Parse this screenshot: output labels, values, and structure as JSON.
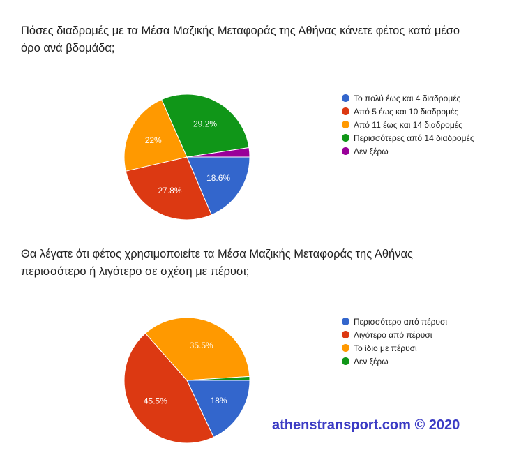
{
  "chart_data": [
    {
      "type": "pie",
      "title": "Πόσες διαδρομές με τα Μέσα Μαζικής Μεταφοράς της Αθήνας κάνετε φέτος κατά μέσο όρο ανά βδομάδα;",
      "legend_position": "right",
      "slices": [
        {
          "label": "Το πολύ έως και 4 διαδρομές",
          "value": 18.6,
          "display": "18.6%",
          "color": "#3366cc"
        },
        {
          "label": "Από 5 έως και 10 διαδρομές",
          "value": 27.8,
          "display": "27.8%",
          "color": "#dc3912"
        },
        {
          "label": "Από 11 έως και 14 διαδρομές",
          "value": 22,
          "display": "22%",
          "color": "#ff9900"
        },
        {
          "label": "Περισσότερες από 14 διαδρομές",
          "value": 29.2,
          "display": "29.2%",
          "color": "#109618"
        },
        {
          "label": "Δεν ξέρω",
          "value": 2.4,
          "display": "",
          "color": "#990099"
        }
      ]
    },
    {
      "type": "pie",
      "title": "Θα λέγατε ότι φέτος χρησιμοποιείτε τα Μέσα Μαζικής Μεταφοράς της Αθήνας περισσότερο ή λιγότερο σε σχέση με πέρυσι;",
      "legend_position": "right",
      "slices": [
        {
          "label": "Περισσότερο από πέρυσι",
          "value": 18,
          "display": "18%",
          "color": "#3366cc"
        },
        {
          "label": "Λιγότερο από πέρυσι",
          "value": 45.5,
          "display": "45.5%",
          "color": "#dc3912"
        },
        {
          "label": "Το ίδιο με πέρυσι",
          "value": 35.5,
          "display": "35.5%",
          "color": "#ff9900"
        },
        {
          "label": "Δεν ξέρω",
          "value": 1,
          "display": "",
          "color": "#109618"
        }
      ]
    }
  ],
  "watermark": "athenstransport.com © 2020"
}
